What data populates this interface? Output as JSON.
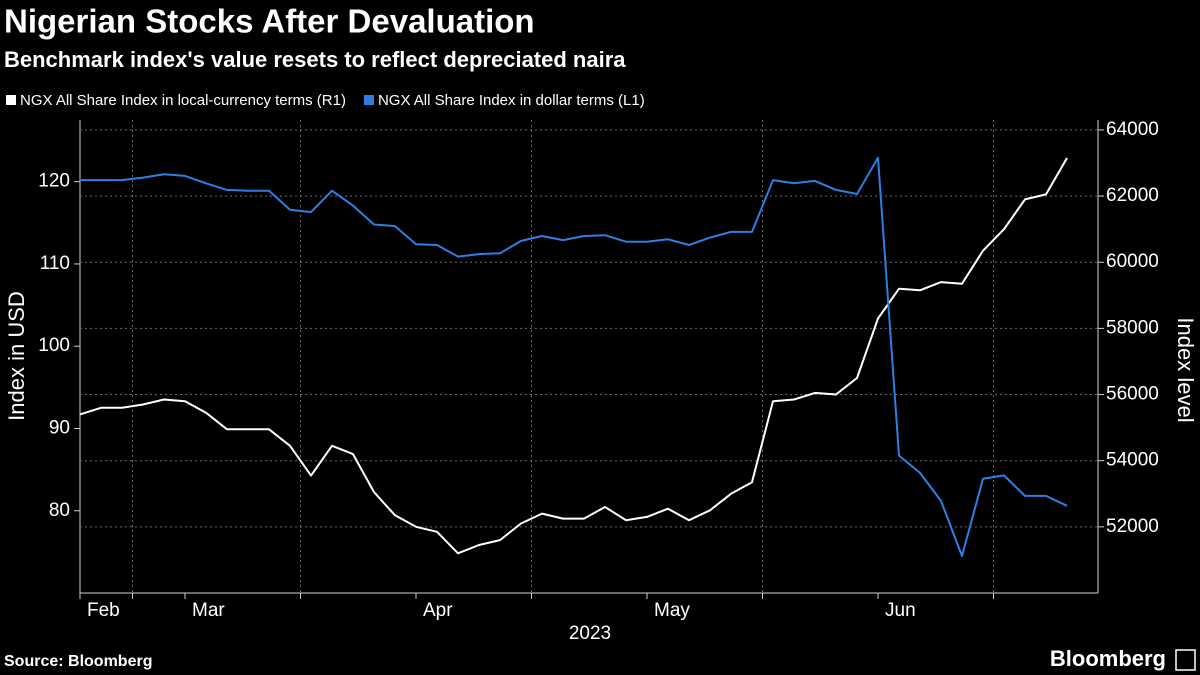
{
  "chart_data": {
    "type": "line",
    "title": "Nigerian Stocks After Devaluation",
    "subtitle": "Benchmark index's value resets to reflect depreciated naira",
    "ylabel": "Index in USD",
    "y2label": "Index level",
    "xlabel": "2023",
    "source": "Source: Bloomberg",
    "brand": "Bloomberg",
    "categories": [
      "Feb",
      null,
      null,
      null,
      null,
      "Mar",
      null,
      null,
      null,
      null,
      null,
      null,
      null,
      null,
      null,
      null,
      "Apr",
      null,
      null,
      null,
      null,
      null,
      null,
      null,
      null,
      null,
      null,
      "May",
      null,
      null,
      null,
      null,
      null,
      null,
      null,
      null,
      null,
      null,
      "Jun",
      null,
      null,
      null,
      null,
      null,
      null,
      null,
      null,
      null
    ],
    "series": [
      {
        "name": "NGX All Share Index in local-currency terms (R1)",
        "color": "#ffffff",
        "axis": "y2",
        "values": [
          55400,
          55600,
          55600,
          55700,
          55850,
          55800,
          55450,
          54950,
          54950,
          54950,
          54450,
          53550,
          54450,
          54200,
          53050,
          52350,
          52000,
          51850,
          51200,
          51450,
          51600,
          52100,
          52400,
          52250,
          52250,
          52600,
          52200,
          52300,
          52550,
          52200,
          52500,
          53000,
          53350,
          55800,
          55850,
          56050,
          56000,
          56500,
          58300,
          59200,
          59150,
          59400,
          59350,
          60350,
          61000,
          61900,
          62050,
          63150
        ]
      },
      {
        "name": "NGX All Share Index in dollar terms (L1)",
        "color": "#2f7fe3",
        "values": [
          120.2,
          120.2,
          120.2,
          120.5,
          120.9,
          120.7,
          119.8,
          119.0,
          118.9,
          118.9,
          116.6,
          116.3,
          118.9,
          117.1,
          114.8,
          114.6,
          112.4,
          112.3,
          110.9,
          111.2,
          111.3,
          112.8,
          113.4,
          112.9,
          113.4,
          113.5,
          112.7,
          112.7,
          113.0,
          112.3,
          113.2,
          113.9,
          113.9,
          120.2,
          119.8,
          120.1,
          119.0,
          118.5,
          122.9,
          86.7,
          84.6,
          81.2,
          74.5,
          83.9,
          84.3,
          81.8,
          81.8,
          80.6
        ]
      }
    ],
    "ylim": [
      70,
      127.5
    ],
    "yticks": [
      80,
      90,
      100,
      110,
      120
    ],
    "y2lim": [
      50000,
      64300
    ],
    "y2ticks": [
      52000,
      54000,
      56000,
      58000,
      60000,
      62000,
      64000
    ],
    "grid": true,
    "legend": "top"
  }
}
